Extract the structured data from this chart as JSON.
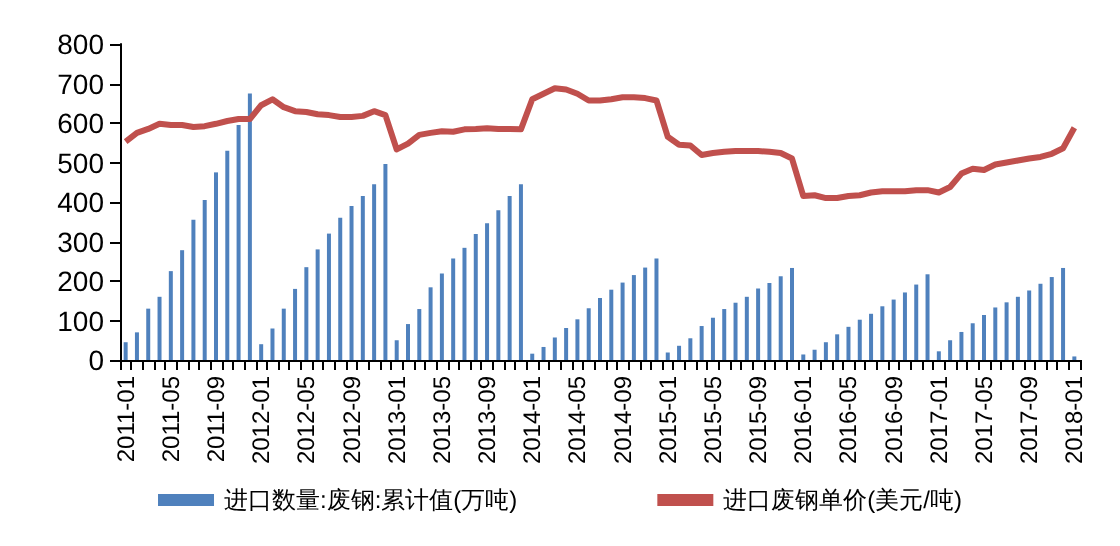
{
  "chart_data": {
    "type": "bar",
    "categories": [
      "2011-01",
      null,
      null,
      null,
      "2011-05",
      null,
      null,
      null,
      "2011-09",
      null,
      null,
      null,
      "2012-01",
      null,
      null,
      null,
      "2012-05",
      null,
      null,
      null,
      "2012-09",
      null,
      null,
      null,
      "2013-01",
      null,
      null,
      null,
      "2013-05",
      null,
      null,
      null,
      "2013-09",
      null,
      null,
      null,
      "2014-01",
      null,
      null,
      null,
      "2014-05",
      null,
      null,
      null,
      "2014-09",
      null,
      null,
      null,
      "2015-01",
      null,
      null,
      null,
      "2015-05",
      null,
      null,
      null,
      "2015-09",
      null,
      null,
      null,
      "2016-01",
      null,
      null,
      null,
      "2016-05",
      null,
      null,
      null,
      "2016-09",
      null,
      null,
      null,
      "2017-01",
      null,
      null,
      null,
      "2017-05",
      null,
      null,
      null,
      "2017-09",
      null,
      null,
      null,
      "2018-01"
    ],
    "series": [
      {
        "name": "进口数量:废钢:累计值(万吨)",
        "color": "#4f81bd",
        "values": [
          45,
          70,
          130,
          160,
          225,
          278,
          355,
          405,
          475,
          530,
          595,
          675,
          40,
          80,
          130,
          180,
          235,
          280,
          320,
          360,
          390,
          415,
          445,
          496,
          50,
          91,
          129,
          184,
          219,
          257,
          284,
          319,
          346,
          379,
          415,
          445,
          16,
          33,
          57,
          81,
          103,
          131,
          157,
          178,
          196,
          215,
          234,
          257,
          19,
          36,
          55,
          86,
          107,
          129,
          145,
          160,
          181,
          195,
          212,
          233,
          14,
          26,
          45,
          65,
          84,
          102,
          117,
          136,
          153,
          171,
          191,
          217,
          22,
          50,
          71,
          93,
          114,
          133,
          146,
          160,
          176,
          193,
          210,
          233,
          9
        ]
      },
      {
        "name": "进口废钢单价(美元/吨)",
        "type": "line",
        "color": "#c0504d",
        "values": [
          553,
          575,
          585,
          598,
          595,
          595,
          590,
          592,
          598,
          605,
          610,
          610,
          645,
          660,
          640,
          630,
          628,
          622,
          620,
          615,
          615,
          618,
          630,
          620,
          533,
          548,
          570,
          575,
          579,
          578,
          584,
          585,
          587,
          585,
          585,
          584,
          660,
          674,
          688,
          685,
          674,
          657,
          657,
          660,
          665,
          665,
          663,
          657,
          565,
          545,
          543,
          519,
          524,
          527,
          529,
          529,
          529,
          527,
          524,
          510,
          415,
          417,
          410,
          410,
          415,
          417,
          424,
          427,
          427,
          427,
          430,
          430,
          424,
          438,
          472,
          484,
          481,
          495,
          500,
          505,
          510,
          514,
          522,
          536,
          588
        ]
      }
    ],
    "ylim": [
      0,
      800
    ],
    "yticks": [
      0,
      100,
      200,
      300,
      400,
      500,
      600,
      700,
      800
    ],
    "grid": false,
    "legend": "bottom",
    "marker": "none",
    "line_style": "solid"
  }
}
